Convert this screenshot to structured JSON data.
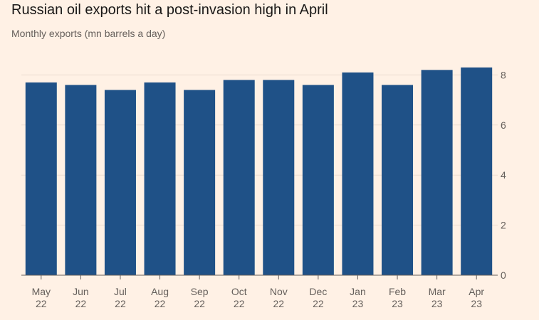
{
  "title": "Russian oil exports hit a post-invasion high in April",
  "subtitle": "Monthly exports (mn barrels a day)",
  "colors": {
    "background": "#fff1e5",
    "bar": "#1f5187",
    "grid": "#ecdcd0",
    "axis": "#66605c",
    "text": "#66605c"
  },
  "chart_data": {
    "type": "bar",
    "title": "Russian oil exports hit a post-invasion high in April",
    "subtitle": "Monthly exports (mn barrels a day)",
    "xlabel": "",
    "ylabel": "",
    "y_axis_side": "right",
    "grid": true,
    "categories": [
      [
        "May",
        "22"
      ],
      [
        "Jun",
        "22"
      ],
      [
        "Jul",
        "22"
      ],
      [
        "Aug",
        "22"
      ],
      [
        "Sep",
        "22"
      ],
      [
        "Oct",
        "22"
      ],
      [
        "Nov",
        "22"
      ],
      [
        "Dec",
        "22"
      ],
      [
        "Jan",
        "23"
      ],
      [
        "Feb",
        "23"
      ],
      [
        "Mar",
        "23"
      ],
      [
        "Apr",
        "23"
      ]
    ],
    "values": [
      7.7,
      7.6,
      7.4,
      7.7,
      7.4,
      7.8,
      7.8,
      7.6,
      8.1,
      7.6,
      8.2,
      8.3
    ],
    "ylim": [
      0,
      8.5
    ],
    "yticks": [
      0,
      2,
      4,
      6,
      8
    ]
  }
}
